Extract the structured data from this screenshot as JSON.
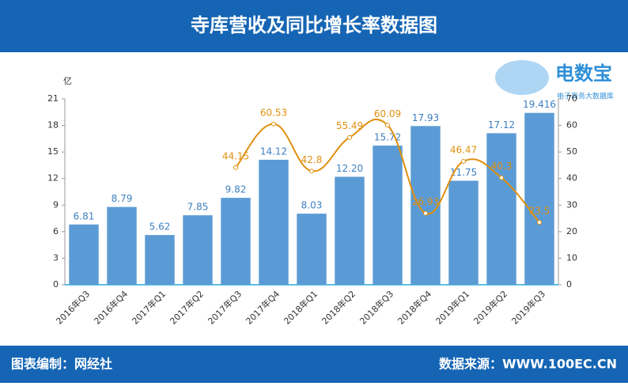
{
  "chart_data": {
    "type": "bar",
    "title": "寺库营收及同比增长率数据图",
    "y_label": "亿",
    "categories": [
      "2016年Q3",
      "2016年Q4",
      "2017年Q1",
      "2017年Q2",
      "2017年Q3",
      "2017年Q4",
      "2018年Q1",
      "2018年Q2",
      "2018年Q3",
      "2018年Q4",
      "2019年Q1",
      "2019年Q2",
      "2019年Q3"
    ],
    "series": [
      {
        "type": "bar",
        "color": "#5b9bd5",
        "values": [
          6.81,
          8.79,
          5.62,
          7.85,
          9.82,
          14.12,
          8.03,
          12.2,
          15.72,
          17.93,
          11.75,
          17.12,
          19.416
        ],
        "value_labels": [
          "6.81",
          "8.79",
          "5.62",
          "7.85",
          "9.82",
          "14.12",
          "8.03",
          "12.20",
          "15.72",
          "17.93",
          "11.75",
          "17.12",
          "19.416"
        ]
      },
      {
        "type": "line",
        "axis": "y2",
        "color": "#e0900f",
        "values": [
          null,
          null,
          null,
          null,
          44.15,
          60.53,
          42.8,
          55.49,
          60.09,
          26.93,
          46.47,
          40.3,
          23.5
        ]
      }
    ],
    "ylim": [
      0,
      21
    ],
    "yticks": [
      0,
      3,
      6,
      9,
      12,
      15,
      18,
      21
    ],
    "y2lim": [
      0,
      70
    ],
    "y2ticks": [
      0,
      10,
      20,
      30,
      40,
      50,
      60,
      70
    ],
    "footer_left": "图表编制：网经社",
    "footer_right": "数据来源：WWW.100EC.CN",
    "logo": {
      "name": "电数宝",
      "sub": "电子商务大数据库"
    }
  }
}
